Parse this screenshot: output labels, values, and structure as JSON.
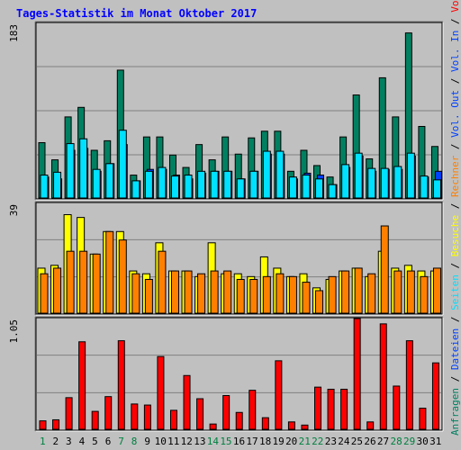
{
  "title": "Tages-Statistik im Monat Oktober 2017",
  "colors": {
    "background": "#c0c0c0",
    "title": "#0000ff",
    "anfragen": "#008060",
    "dateien": "#0040ff",
    "seiten": "#00e0ff",
    "besuche": "#ffff00",
    "rechner": "#ff8000",
    "vol_in": "#ff0000",
    "weekend_tick": "#008040",
    "weekday_tick": "#000000"
  },
  "side_label": {
    "top": [
      {
        "text": "Anfragen",
        "color": "#008060"
      },
      {
        "text": " / ",
        "color": "#000000"
      },
      {
        "text": "Dateien",
        "color": "#0040ff"
      },
      {
        "text": " / ",
        "color": "#000000"
      },
      {
        "text": "Seiten",
        "color": "#00e0ff"
      },
      {
        "text": " / ",
        "color": "#000000"
      },
      {
        "text": "Besuche",
        "color": "#ffff00"
      },
      {
        "text": " / ",
        "color": "#000000"
      },
      {
        "text": "Rechner",
        "color": "#ff8000"
      },
      {
        "text": " / ",
        "color": "#000000"
      },
      {
        "text": "Vol. Out",
        "color": "#0040ff"
      },
      {
        "text": " / ",
        "color": "#000000"
      },
      {
        "text": "Vol. In",
        "color": "#0040ff"
      },
      {
        "text": " / ",
        "color": "#000000"
      },
      {
        "text": "Volumen",
        "color": "#ff0000"
      }
    ]
  },
  "chart_data": [
    {
      "type": "bar",
      "name": "hits",
      "ymax_label": "183",
      "ylim": [
        0,
        183
      ],
      "categories": [
        "1",
        "2",
        "3",
        "4",
        "5",
        "6",
        "7",
        "8",
        "9",
        "10",
        "11",
        "12",
        "13",
        "14",
        "15",
        "16",
        "17",
        "18",
        "19",
        "20",
        "21",
        "22",
        "23",
        "24",
        "25",
        "26",
        "27",
        "28",
        "29",
        "30",
        "31"
      ],
      "series": [
        {
          "name": "Anfragen",
          "values": [
            58,
            40,
            85,
            95,
            50,
            60,
            134,
            24,
            64,
            64,
            45,
            32,
            56,
            40,
            64,
            46,
            63,
            70,
            70,
            28,
            50,
            34,
            22,
            64,
            108,
            41,
            126,
            85,
            173,
            75,
            54
          ]
        },
        {
          "name": "Dateien",
          "values": [
            22,
            20,
            50,
            52,
            28,
            36,
            56,
            18,
            30,
            30,
            24,
            20,
            26,
            28,
            28,
            20,
            28,
            46,
            46,
            20,
            26,
            24,
            14,
            32,
            44,
            28,
            30,
            30,
            44,
            22,
            28
          ]
        },
        {
          "name": "Seiten",
          "values": [
            24,
            27,
            57,
            62,
            30,
            36,
            71,
            18,
            28,
            32,
            23,
            24,
            28,
            28,
            28,
            20,
            28,
            49,
            49,
            22,
            24,
            20,
            14,
            35,
            47,
            31,
            31,
            33,
            47,
            23,
            19
          ]
        }
      ]
    },
    {
      "type": "bar",
      "name": "visits",
      "ymax_label": "39",
      "ylim": [
        0,
        39
      ],
      "categories": [
        "1",
        "2",
        "3",
        "4",
        "5",
        "6",
        "7",
        "8",
        "9",
        "10",
        "11",
        "12",
        "13",
        "14",
        "15",
        "16",
        "17",
        "18",
        "19",
        "20",
        "21",
        "22",
        "23",
        "24",
        "25",
        "26",
        "27",
        "28",
        "29",
        "30",
        "31"
      ],
      "series": [
        {
          "name": "Besuche",
          "values": [
            16,
            17,
            35,
            34,
            21,
            29,
            29,
            15,
            14,
            25,
            15,
            15,
            13,
            25,
            14,
            14,
            13,
            20,
            16,
            13,
            14,
            9,
            12,
            15,
            16,
            13,
            22,
            16,
            17,
            15,
            15
          ]
        },
        {
          "name": "Rechner",
          "values": [
            14,
            16,
            22,
            22,
            21,
            29,
            26,
            14,
            12,
            22,
            15,
            15,
            14,
            15,
            15,
            12,
            12,
            13,
            14,
            13,
            11,
            8,
            13,
            15,
            16,
            14,
            31,
            15,
            15,
            13,
            16
          ]
        }
      ]
    },
    {
      "type": "bar",
      "name": "volume",
      "ymax_label": "1.05",
      "ylim": [
        0,
        1.05
      ],
      "categories": [
        "1",
        "2",
        "3",
        "4",
        "5",
        "6",
        "7",
        "8",
        "9",
        "10",
        "11",
        "12",
        "13",
        "14",
        "15",
        "16",
        "17",
        "18",
        "19",
        "20",
        "21",
        "22",
        "23",
        "24",
        "25",
        "26",
        "27",
        "28",
        "29",
        "30",
        "31"
      ],
      "series": [
        {
          "name": "Volumen",
          "values": [
            0.08,
            0.09,
            0.3,
            0.83,
            0.17,
            0.31,
            0.84,
            0.24,
            0.23,
            0.69,
            0.18,
            0.51,
            0.29,
            0.05,
            0.32,
            0.16,
            0.37,
            0.11,
            0.65,
            0.07,
            0.04,
            0.4,
            0.38,
            0.38,
            1.05,
            0.07,
            1.0,
            0.41,
            0.84,
            0.2,
            0.63
          ]
        }
      ]
    }
  ],
  "weekend_days": [
    "1",
    "7",
    "8",
    "14",
    "15",
    "21",
    "22",
    "28",
    "29"
  ]
}
